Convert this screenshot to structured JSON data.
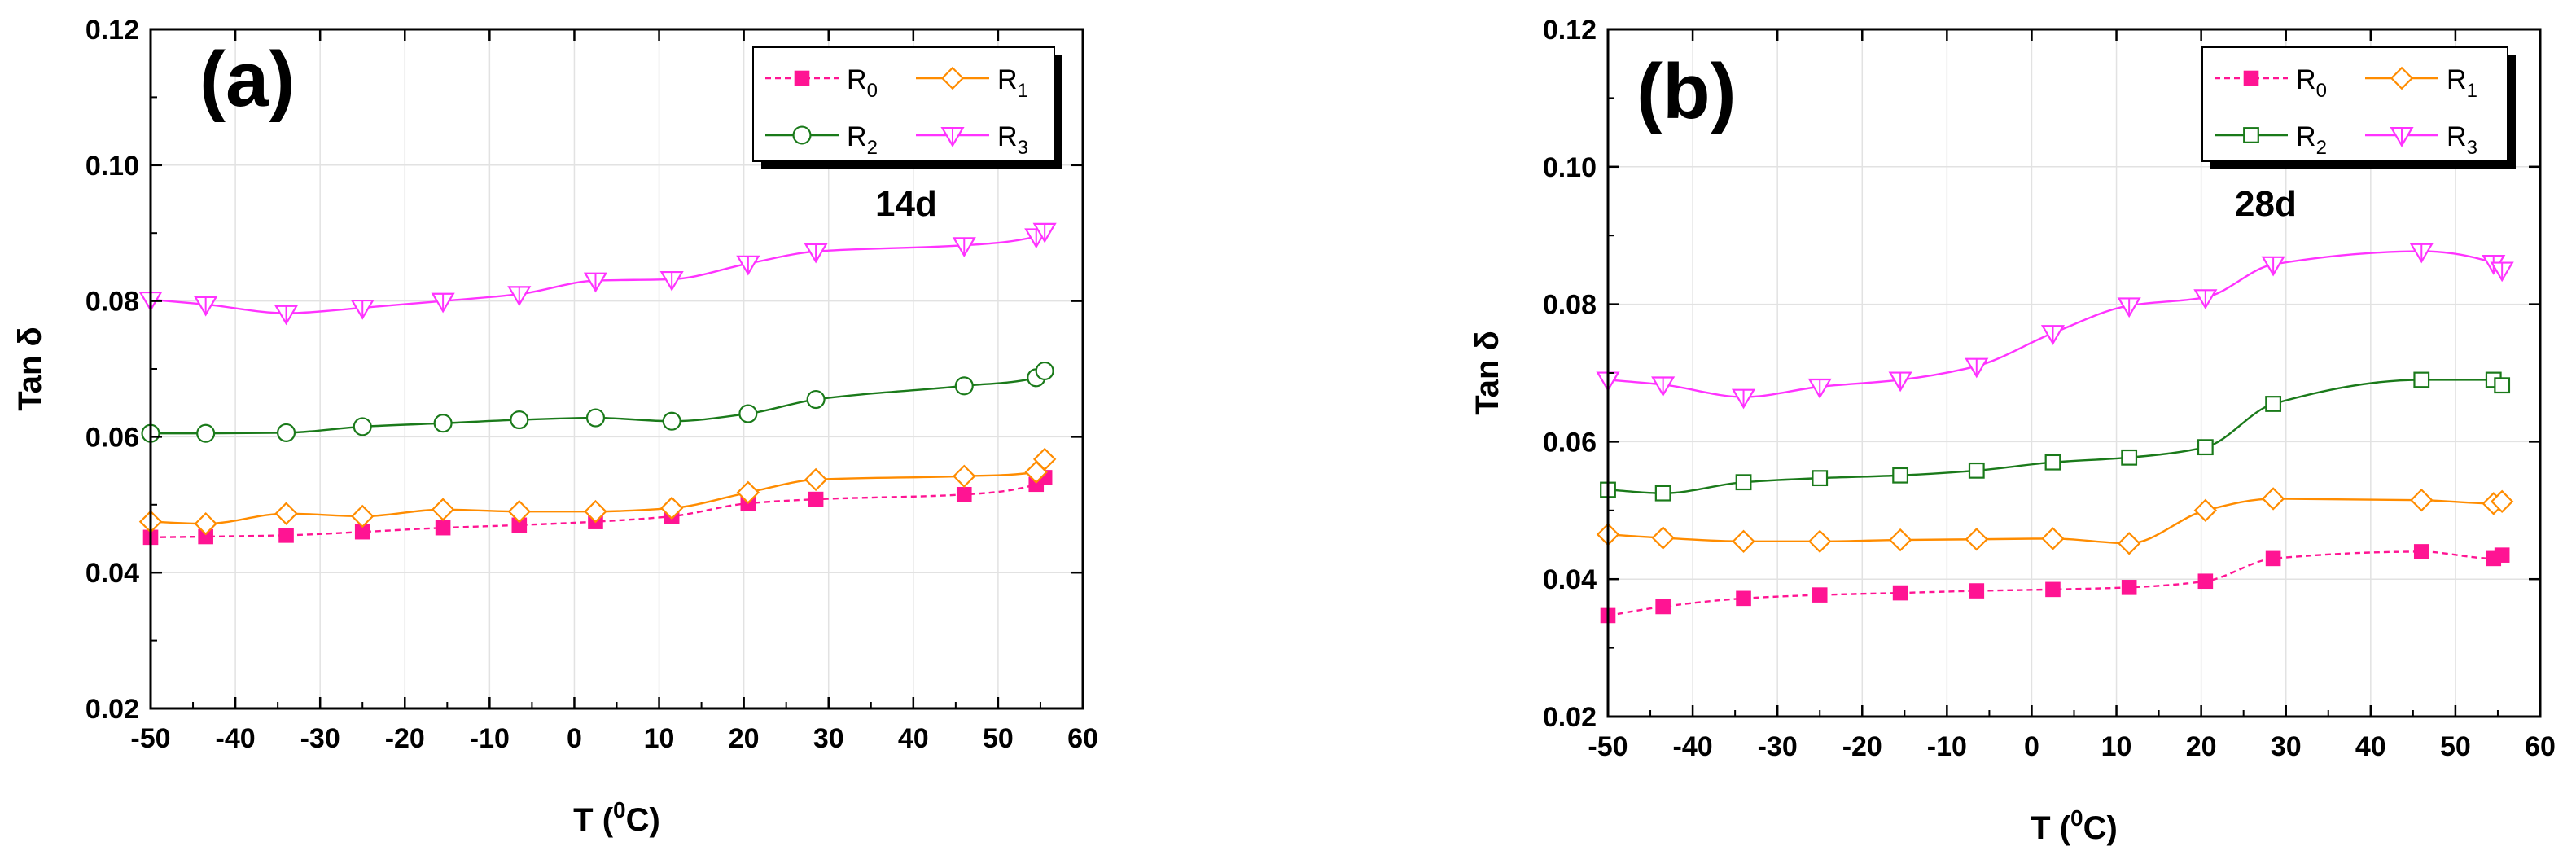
{
  "chart_data": [
    {
      "type": "line",
      "panel_label": "(a)",
      "annotation": "14d",
      "xlabel": "T (⁰C)",
      "xlabel_parts": [
        "T (",
        "0",
        "C)"
      ],
      "ylabel": "Tan δ",
      "xlim": [
        -50,
        60
      ],
      "ylim": [
        0.02,
        0.12
      ],
      "xticks": [
        -50,
        -40,
        -30,
        -20,
        -10,
        0,
        10,
        20,
        30,
        40,
        50,
        60
      ],
      "yticks": [
        0.02,
        0.04,
        0.06,
        0.08,
        0.1,
        0.12
      ],
      "ytick_labels": [
        "0.02",
        "0.04",
        "0.06",
        "0.08",
        "0.10",
        "0.12"
      ],
      "grid": true,
      "legend_position": "top-right",
      "x": [
        -50,
        -43.5,
        -34,
        -25,
        -15.5,
        -6.5,
        2.5,
        11.5,
        20.5,
        28.5,
        46,
        54.5,
        55.5
      ],
      "series": [
        {
          "name": "R0",
          "base": "R",
          "sub": "0",
          "color": "#ff1493",
          "marker": "square-filled",
          "dash": true,
          "values": [
            0.0452,
            0.0453,
            0.0455,
            0.046,
            0.0466,
            0.047,
            0.0475,
            0.0483,
            0.0502,
            0.0508,
            0.0515,
            0.053,
            0.054
          ]
        },
        {
          "name": "R1",
          "base": "R",
          "sub": "1",
          "color": "#ff8c00",
          "marker": "diamond-open",
          "dash": false,
          "values": [
            0.0475,
            0.0472,
            0.0487,
            0.0483,
            0.0493,
            0.049,
            0.049,
            0.0495,
            0.0518,
            0.0537,
            0.0542,
            0.0548,
            0.0567
          ]
        },
        {
          "name": "R2",
          "base": "R",
          "sub": "2",
          "color": "#1a7a1a",
          "marker": "circle-open",
          "dash": false,
          "values": [
            0.0605,
            0.0605,
            0.0606,
            0.0615,
            0.062,
            0.0625,
            0.0628,
            0.0623,
            0.0634,
            0.0655,
            0.0675,
            0.0687,
            0.0697
          ]
        },
        {
          "name": "R3",
          "base": "R",
          "sub": "3",
          "color": "#ff33ff",
          "marker": "tri-down-open",
          "dash": false,
          "values": [
            0.0802,
            0.0795,
            0.0782,
            0.079,
            0.08,
            0.081,
            0.083,
            0.0832,
            0.0855,
            0.0873,
            0.0882,
            0.0895,
            0.0903
          ]
        }
      ]
    },
    {
      "type": "line",
      "panel_label": "(b)",
      "annotation": "28d",
      "xlabel": "T (⁰C)",
      "xlabel_parts": [
        "T (",
        "0",
        "C)"
      ],
      "ylabel": "Tan δ",
      "xlim": [
        -50,
        60
      ],
      "ylim": [
        0.02,
        0.12
      ],
      "xticks": [
        -50,
        -40,
        -30,
        -20,
        -10,
        0,
        10,
        20,
        30,
        40,
        50,
        60
      ],
      "yticks": [
        0.02,
        0.04,
        0.06,
        0.08,
        0.1,
        0.12
      ],
      "ytick_labels": [
        "0.02",
        "0.04",
        "0.06",
        "0.08",
        "0.10",
        "0.12"
      ],
      "grid": true,
      "legend_position": "top-right",
      "x": [
        -50,
        -43.5,
        -34,
        -25,
        -15.5,
        -6.5,
        2.5,
        11.5,
        20.5,
        28.5,
        46,
        54.5,
        55.5
      ],
      "series": [
        {
          "name": "R0",
          "base": "R",
          "sub": "0",
          "color": "#ff1493",
          "marker": "square-filled",
          "dash": true,
          "values": [
            0.0347,
            0.036,
            0.0372,
            0.0377,
            0.038,
            0.0383,
            0.0385,
            0.0388,
            0.0397,
            0.043,
            0.044,
            0.043,
            0.0435
          ]
        },
        {
          "name": "R1",
          "base": "R",
          "sub": "1",
          "color": "#ff8c00",
          "marker": "diamond-open",
          "dash": false,
          "values": [
            0.0465,
            0.046,
            0.0455,
            0.0455,
            0.0457,
            0.0458,
            0.0459,
            0.0452,
            0.05,
            0.0517,
            0.0515,
            0.051,
            0.0513
          ]
        },
        {
          "name": "R2",
          "base": "R",
          "sub": "2",
          "color": "#1a7a1a",
          "marker": "square-open",
          "dash": false,
          "values": [
            0.053,
            0.0525,
            0.0541,
            0.0547,
            0.0551,
            0.0558,
            0.057,
            0.0577,
            0.0592,
            0.0655,
            0.069,
            0.069,
            0.0682
          ]
        },
        {
          "name": "R3",
          "base": "R",
          "sub": "3",
          "color": "#ff33ff",
          "marker": "tri-down-open",
          "dash": false,
          "values": [
            0.069,
            0.0683,
            0.0665,
            0.068,
            0.069,
            0.071,
            0.0758,
            0.0798,
            0.081,
            0.0858,
            0.0877,
            0.086,
            0.085
          ]
        }
      ]
    }
  ]
}
